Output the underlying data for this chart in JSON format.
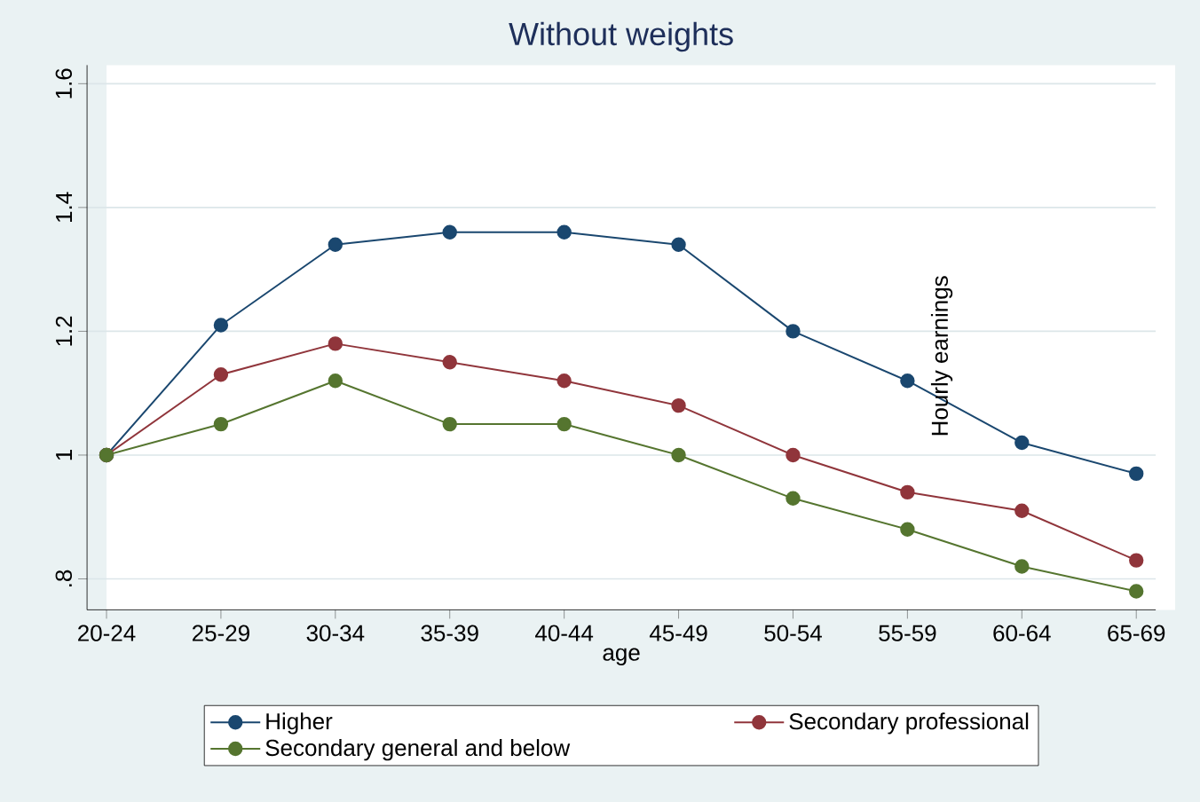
{
  "chart_data": {
    "type": "line",
    "title": "Without weights",
    "xlabel": "age",
    "categories": [
      "20-24",
      "25-29",
      "30-34",
      "35-39",
      "40-44",
      "45-49",
      "50-54",
      "55-59",
      "60-64",
      "65-69"
    ],
    "series": [
      {
        "name": "Higher",
        "color": "#1a476f",
        "values": [
          1.0,
          1.21,
          1.34,
          1.36,
          1.36,
          1.34,
          1.2,
          1.12,
          1.02,
          0.97
        ]
      },
      {
        "name": "Secondary professional",
        "color": "#90353b",
        "values": [
          1.0,
          1.13,
          1.18,
          1.15,
          1.12,
          1.08,
          1.0,
          0.94,
          0.91,
          0.83
        ]
      },
      {
        "name": "Secondary general and below",
        "color": "#55752f",
        "values": [
          1.0,
          1.05,
          1.12,
          1.05,
          1.05,
          1.0,
          0.93,
          0.88,
          0.82,
          0.78
        ]
      }
    ],
    "ylim": [
      0.75,
      1.63
    ],
    "yticks": [
      {
        "value": 0.8,
        "label": ".8"
      },
      1,
      1.2,
      1.4,
      1.6
    ],
    "annotations": [
      "Hourly earnings"
    ],
    "grid": "y",
    "legend": "bottom",
    "marker": "circle",
    "line_style": "solid"
  }
}
